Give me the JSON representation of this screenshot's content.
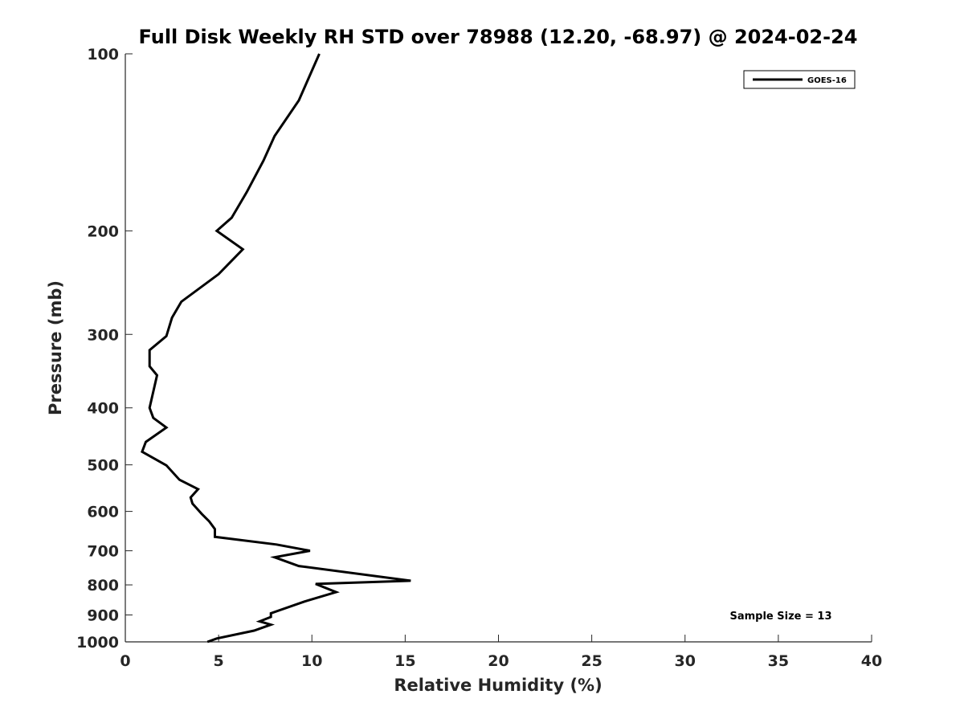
{
  "chart_data": {
    "type": "line",
    "title": "Full Disk Weekly RH STD over 78988 (12.20, -68.97) @ 2024-02-24",
    "xlabel": "Relative Humidity (%)",
    "ylabel": "Pressure (mb)",
    "xlim": [
      0,
      40
    ],
    "ylim": [
      100,
      1000
    ],
    "yscale": "log",
    "y_inverted": true,
    "grid": false,
    "x_ticks": [
      0,
      5,
      10,
      15,
      20,
      25,
      30,
      35,
      40
    ],
    "y_ticks": [
      100,
      200,
      300,
      400,
      500,
      600,
      700,
      800,
      900,
      1000
    ],
    "legend": {
      "position": "top-right",
      "entries": [
        "GOES-16"
      ]
    },
    "annotation": "Sample Size = 13",
    "series": [
      {
        "name": "GOES-16",
        "color": "#000000",
        "x": [
          10.4,
          9.3,
          8.0,
          7.4,
          6.5,
          5.7,
          4.9,
          6.3,
          5.0,
          3.0,
          2.5,
          2.2,
          1.3,
          1.3,
          1.7,
          1.3,
          1.5,
          2.2,
          1.1,
          0.9,
          2.2,
          2.9,
          3.9,
          3.5,
          3.6,
          4.1,
          4.5,
          4.8,
          4.8,
          8.1,
          9.9,
          8.0,
          9.3,
          15.3,
          10.2,
          11.3,
          9.6,
          7.8,
          7.8,
          7.2,
          7.8,
          6.9,
          4.9,
          4.4
        ],
        "y": [
          100,
          120,
          138,
          152,
          172,
          190,
          200,
          215,
          237,
          264,
          281,
          302,
          319,
          340,
          352,
          400,
          416,
          432,
          457,
          475,
          501,
          530,
          550,
          568,
          582,
          606,
          624,
          643,
          663,
          683,
          700,
          718,
          743,
          787,
          797,
          823,
          854,
          894,
          907,
          923,
          935,
          957,
          987,
          1000
        ]
      }
    ]
  }
}
